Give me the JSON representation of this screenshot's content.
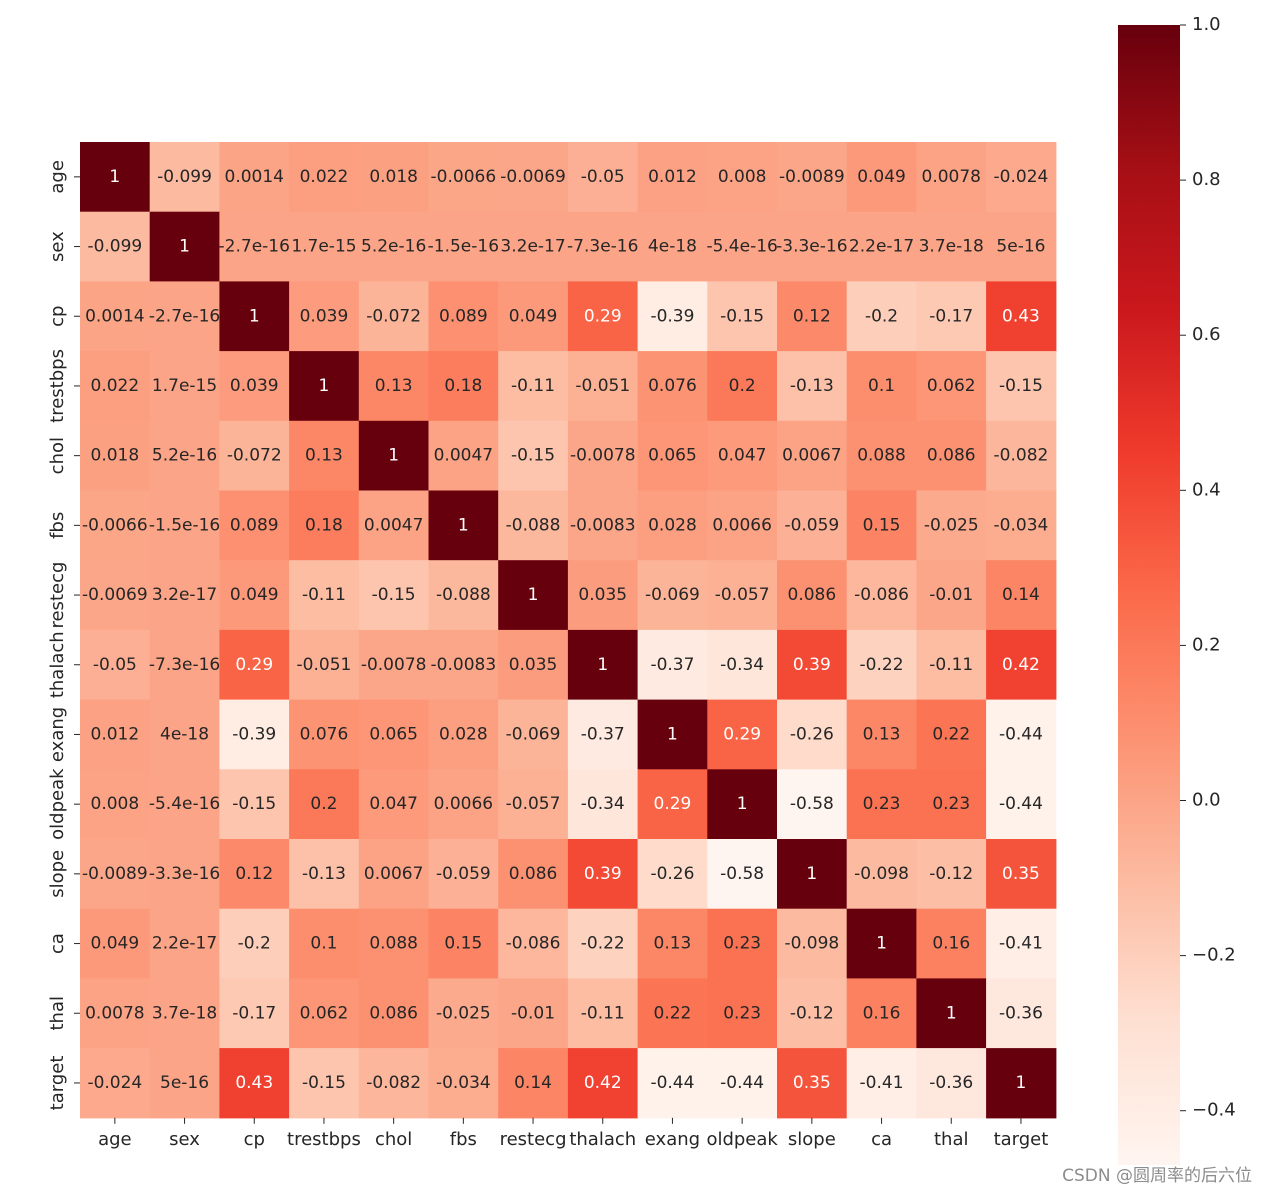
{
  "chart_data": {
    "type": "heatmap",
    "labels": [
      "age",
      "sex",
      "cp",
      "trestbps",
      "chol",
      "fbs",
      "restecg",
      "thalach",
      "exang",
      "oldpeak",
      "slope",
      "ca",
      "thal",
      "target"
    ],
    "values": [
      [
        1,
        -0.099,
        0.0014,
        0.022,
        0.018,
        -0.0066,
        -0.0069,
        -0.05,
        0.012,
        0.008,
        -0.0089,
        0.049,
        0.0078,
        -0.024
      ],
      [
        -0.099,
        1,
        -2.7e-16,
        1.7e-15,
        5.2e-16,
        -1.5e-16,
        3.2e-17,
        -7.3e-16,
        4e-18,
        -5.4e-16,
        -3.3e-16,
        2.2e-17,
        3.7e-18,
        5e-16
      ],
      [
        0.0014,
        -2.7e-16,
        1,
        0.039,
        -0.072,
        0.089,
        0.049,
        0.29,
        -0.39,
        -0.15,
        0.12,
        -0.2,
        -0.17,
        0.43
      ],
      [
        0.022,
        1.7e-15,
        0.039,
        1,
        0.13,
        0.18,
        -0.11,
        -0.051,
        0.076,
        0.2,
        -0.13,
        0.1,
        0.062,
        -0.15
      ],
      [
        0.018,
        5.2e-16,
        -0.072,
        0.13,
        1,
        0.0047,
        -0.15,
        -0.0078,
        0.065,
        0.047,
        0.0067,
        0.088,
        0.086,
        -0.082
      ],
      [
        -0.0066,
        -1.5e-16,
        0.089,
        0.18,
        0.0047,
        1,
        -0.088,
        -0.0083,
        0.028,
        0.0066,
        -0.059,
        0.15,
        -0.025,
        -0.034
      ],
      [
        -0.0069,
        3.2e-17,
        0.049,
        -0.11,
        -0.15,
        -0.088,
        1,
        0.035,
        -0.069,
        -0.057,
        0.086,
        -0.086,
        -0.01,
        0.14
      ],
      [
        -0.05,
        -7.3e-16,
        0.29,
        -0.051,
        -0.0078,
        -0.0083,
        0.035,
        1,
        -0.37,
        -0.34,
        0.39,
        -0.22,
        -0.11,
        0.42
      ],
      [
        0.012,
        4e-18,
        -0.39,
        0.076,
        0.065,
        0.028,
        -0.069,
        -0.37,
        1,
        0.29,
        -0.26,
        0.13,
        0.22,
        -0.44
      ],
      [
        0.008,
        -5.4e-16,
        -0.15,
        0.2,
        0.047,
        0.0066,
        -0.057,
        -0.34,
        0.29,
        1,
        -0.58,
        0.23,
        0.23,
        -0.44
      ],
      [
        -0.0089,
        -3.3e-16,
        0.12,
        -0.13,
        0.0067,
        -0.059,
        0.086,
        0.39,
        -0.26,
        -0.58,
        1,
        -0.098,
        -0.12,
        0.35
      ],
      [
        0.049,
        2.2e-17,
        -0.2,
        0.1,
        0.088,
        0.15,
        -0.086,
        -0.22,
        0.13,
        0.23,
        -0.098,
        1,
        0.16,
        -0.41
      ],
      [
        0.0078,
        3.7e-18,
        -0.17,
        0.062,
        0.086,
        -0.025,
        -0.01,
        -0.11,
        0.22,
        0.23,
        -0.12,
        0.16,
        1,
        -0.36
      ],
      [
        -0.024,
        5e-16,
        0.43,
        -0.15,
        -0.082,
        -0.034,
        0.14,
        0.42,
        -0.44,
        -0.44,
        0.35,
        -0.41,
        -0.36,
        1
      ]
    ],
    "annotations": [
      [
        "1",
        "-0.099",
        "0.0014",
        "0.022",
        "0.018",
        "-0.0066",
        "-0.0069",
        "-0.05",
        "0.012",
        "0.008",
        "-0.0089",
        "0.049",
        "0.0078",
        "-0.024"
      ],
      [
        "-0.099",
        "1",
        "-2.7e-16",
        "1.7e-15",
        "5.2e-16",
        "-1.5e-16",
        "3.2e-17",
        "-7.3e-16",
        "4e-18",
        "-5.4e-16",
        "-3.3e-16",
        "2.2e-17",
        "3.7e-18",
        "5e-16"
      ],
      [
        "0.0014",
        "-2.7e-16",
        "1",
        "0.039",
        "-0.072",
        "0.089",
        "0.049",
        "0.29",
        "-0.39",
        "-0.15",
        "0.12",
        "-0.2",
        "-0.17",
        "0.43"
      ],
      [
        "0.022",
        "1.7e-15",
        "0.039",
        "1",
        "0.13",
        "0.18",
        "-0.11",
        "-0.051",
        "0.076",
        "0.2",
        "-0.13",
        "0.1",
        "0.062",
        "-0.15"
      ],
      [
        "0.018",
        "5.2e-16",
        "-0.072",
        "0.13",
        "1",
        "0.0047",
        "-0.15",
        "-0.0078",
        "0.065",
        "0.047",
        "0.0067",
        "0.088",
        "0.086",
        "-0.082"
      ],
      [
        "-0.0066",
        "-1.5e-16",
        "0.089",
        "0.18",
        "0.0047",
        "1",
        "-0.088",
        "-0.0083",
        "0.028",
        "0.0066",
        "-0.059",
        "0.15",
        "-0.025",
        "-0.034"
      ],
      [
        "-0.0069",
        "3.2e-17",
        "0.049",
        "-0.11",
        "-0.15",
        "-0.088",
        "1",
        "0.035",
        "-0.069",
        "-0.057",
        "0.086",
        "-0.086",
        "-0.01",
        "0.14"
      ],
      [
        "-0.05",
        "-7.3e-16",
        "0.29",
        "-0.051",
        "-0.0078",
        "-0.0083",
        "0.035",
        "1",
        "-0.37",
        "-0.34",
        "0.39",
        "-0.22",
        "-0.11",
        "0.42"
      ],
      [
        "0.012",
        "4e-18",
        "-0.39",
        "0.076",
        "0.065",
        "0.028",
        "-0.069",
        "-0.37",
        "1",
        "0.29",
        "-0.26",
        "0.13",
        "0.22",
        "-0.44"
      ],
      [
        "0.008",
        "-5.4e-16",
        "-0.15",
        "0.2",
        "0.047",
        "0.0066",
        "-0.057",
        "-0.34",
        "0.29",
        "1",
        "-0.58",
        "0.23",
        "0.23",
        "-0.44"
      ],
      [
        "-0.0089",
        "-3.3e-16",
        "0.12",
        "-0.13",
        "0.0067",
        "-0.059",
        "0.086",
        "0.39",
        "-0.26",
        "-0.58",
        "1",
        "-0.098",
        "-0.12",
        "0.35"
      ],
      [
        "0.049",
        "2.2e-17",
        "-0.2",
        "0.1",
        "0.088",
        "0.15",
        "-0.086",
        "-0.22",
        "0.13",
        "0.23",
        "-0.098",
        "1",
        "0.16",
        "-0.41"
      ],
      [
        "0.0078",
        "3.7e-18",
        "-0.17",
        "0.062",
        "0.086",
        "-0.025",
        "-0.01",
        "-0.11",
        "0.22",
        "0.23",
        "-0.12",
        "0.16",
        "1",
        "-0.36"
      ],
      [
        "-0.024",
        "5e-16",
        "0.43",
        "-0.15",
        "-0.082",
        "-0.034",
        "0.14",
        "0.42",
        "-0.44",
        "-0.44",
        "0.35",
        "-0.41",
        "-0.36",
        "1"
      ]
    ],
    "colormap": "Reds",
    "vmin": -0.47,
    "vmax": 1.0,
    "colorbar_ticks": [
      1.0,
      0.8,
      0.6,
      0.4,
      0.2,
      0.0,
      -0.2,
      -0.4
    ],
    "colorbar_tick_labels": [
      "1.0",
      "0.8",
      "0.6",
      "0.4",
      "0.2",
      "0.0",
      "−0.2",
      "−0.4"
    ],
    "colorbar_position": "right"
  },
  "watermark": "CSDN @圆周率的后六位"
}
